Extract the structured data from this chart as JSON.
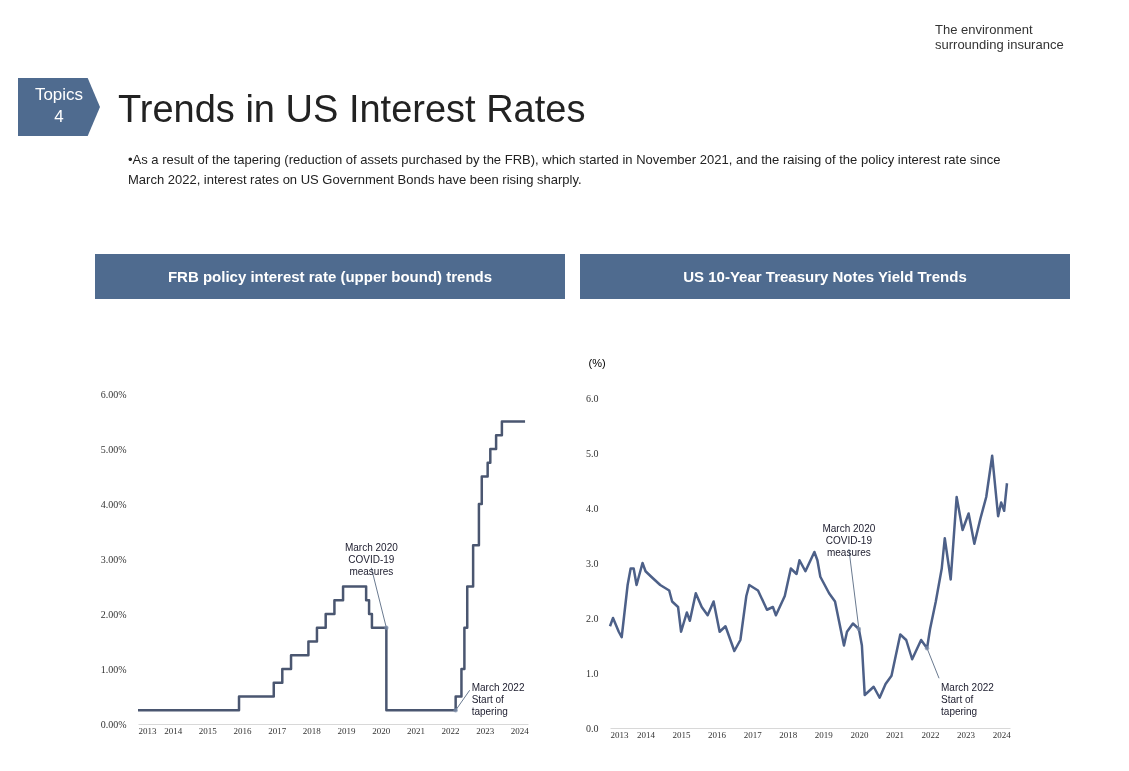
{
  "chart_data": [
    {
      "type": "other",
      "title": "Trends in US Interest Rates",
      "subtitle": "•As a result of the tapering (reduction of assets purchased by the FRB), which started in November 2021, and the raising of the policy interest rate since March 2022, interest rates on US Government Bonds have been rising sharply.",
      "annotations": [
        "Topics\n4",
        "The environment\nsurrounding insurance"
      ]
    },
    {
      "type": "step",
      "title": "FRB policy interest rate (upper bound) trends",
      "x": [
        "2013-01",
        "2015-12",
        "2016-12",
        "2017-03",
        "2017-06",
        "2017-12",
        "2018-03",
        "2018-06",
        "2018-09",
        "2018-12",
        "2019-08",
        "2019-09",
        "2019-10",
        "2020-03",
        "2020-04",
        "2022-03",
        "2022-05",
        "2022-06",
        "2022-07",
        "2022-09",
        "2022-11",
        "2022-12",
        "2023-02",
        "2023-03",
        "2023-05",
        "2023-07",
        "2024-03"
      ],
      "series": [
        {
          "color": "#4a5670",
          "values": [
            0.25,
            0.5,
            0.75,
            1.0,
            1.25,
            1.5,
            1.75,
            2.0,
            2.25,
            2.5,
            2.25,
            2.0,
            1.75,
            0.25,
            0.25,
            0.5,
            1.0,
            1.75,
            2.5,
            3.25,
            4.0,
            4.5,
            4.75,
            5.0,
            5.25,
            5.5,
            5.5
          ]
        }
      ],
      "xlim": [
        "2013-01",
        "2024-04"
      ],
      "xticks": [
        "2013",
        "2014",
        "2015",
        "2016",
        "2017",
        "2018",
        "2019",
        "2020",
        "2021",
        "2022",
        "2023",
        "2024"
      ],
      "ylim": [
        0,
        6
      ],
      "yticks": [
        {
          "value": 0,
          "label": "0.00%"
        },
        {
          "value": 1,
          "label": "1.00%"
        },
        {
          "value": 2,
          "label": "2.00%"
        },
        {
          "value": 3,
          "label": "3.00%"
        },
        {
          "value": 4,
          "label": "4.00%"
        },
        {
          "value": 5,
          "label": "5.00%"
        },
        {
          "value": 6,
          "label": "6.00%"
        }
      ],
      "grid": false,
      "legend": false,
      "annotations": [
        {
          "text": "March 2020\nCOVID-19\nmeasures",
          "x": "2020-03",
          "y": 1.75
        },
        {
          "text": "March 2022\nStart of\ntapering",
          "x": "2022-03",
          "y": 0.25
        }
      ]
    },
    {
      "type": "line",
      "title": "US 10-Year Treasury Notes Yield Trends",
      "ylabel": "(%)",
      "x": [
        "2013-01",
        "2013-02",
        "2013-04",
        "2013-05",
        "2013-07",
        "2013-08",
        "2013-09",
        "2013-10",
        "2013-12",
        "2014-01",
        "2014-03",
        "2014-06",
        "2014-09",
        "2014-10",
        "2014-12",
        "2015-01",
        "2015-03",
        "2015-04",
        "2015-06",
        "2015-08",
        "2015-10",
        "2015-12",
        "2016-02",
        "2016-04",
        "2016-07",
        "2016-09",
        "2016-11",
        "2016-12",
        "2017-03",
        "2017-06",
        "2017-08",
        "2017-09",
        "2017-12",
        "2018-02",
        "2018-04",
        "2018-05",
        "2018-07",
        "2018-10",
        "2018-11",
        "2018-12",
        "2019-03",
        "2019-05",
        "2019-08",
        "2019-09",
        "2019-11",
        "2020-01",
        "2020-02",
        "2020-03",
        "2020-04",
        "2020-06",
        "2020-08",
        "2020-10",
        "2020-12",
        "2021-03",
        "2021-05",
        "2021-07",
        "2021-10",
        "2021-12",
        "2022-01",
        "2022-03",
        "2022-05",
        "2022-06",
        "2022-08",
        "2022-10",
        "2022-12",
        "2023-02",
        "2023-04",
        "2023-06",
        "2023-08",
        "2023-10",
        "2023-12",
        "2024-01",
        "2024-02",
        "2024-03"
      ],
      "series": [
        {
          "color": "#4d6088",
          "values": [
            1.85,
            2.0,
            1.75,
            1.65,
            2.6,
            2.9,
            2.9,
            2.6,
            3.0,
            2.85,
            2.75,
            2.6,
            2.5,
            2.3,
            2.2,
            1.75,
            2.1,
            1.95,
            2.45,
            2.2,
            2.05,
            2.3,
            1.75,
            1.85,
            1.4,
            1.6,
            2.4,
            2.6,
            2.5,
            2.15,
            2.2,
            2.05,
            2.4,
            2.9,
            2.8,
            3.05,
            2.85,
            3.2,
            3.05,
            2.75,
            2.45,
            2.3,
            1.5,
            1.75,
            1.9,
            1.8,
            1.5,
            0.6,
            0.65,
            0.75,
            0.55,
            0.8,
            0.95,
            1.7,
            1.6,
            1.25,
            1.6,
            1.45,
            1.8,
            2.3,
            2.9,
            3.45,
            2.7,
            4.2,
            3.6,
            3.9,
            3.35,
            3.8,
            4.2,
            4.95,
            3.85,
            4.1,
            3.95,
            4.45
          ]
        }
      ],
      "xlim": [
        "2013-01",
        "2024-04"
      ],
      "xticks": [
        "2013",
        "2014",
        "2015",
        "2016",
        "2017",
        "2018",
        "2019",
        "2020",
        "2021",
        "2022",
        "2023",
        "2024"
      ],
      "ylim": [
        0,
        6
      ],
      "yticks": [
        {
          "value": 0,
          "label": "0.0"
        },
        {
          "value": 1,
          "label": "1.0"
        },
        {
          "value": 2,
          "label": "2.0"
        },
        {
          "value": 3,
          "label": "3.0"
        },
        {
          "value": 4,
          "label": "4.0"
        },
        {
          "value": 5,
          "label": "5.0"
        },
        {
          "value": 6,
          "label": "6.0"
        }
      ],
      "grid": false,
      "legend": false,
      "annotations": [
        {
          "text": "March 2020\nCOVID-19\nmeasures",
          "x": "2020-01",
          "y": 1.8
        },
        {
          "text": "March 2022\nStart of\ntapering",
          "x": "2021-12",
          "y": 1.45
        }
      ]
    }
  ]
}
